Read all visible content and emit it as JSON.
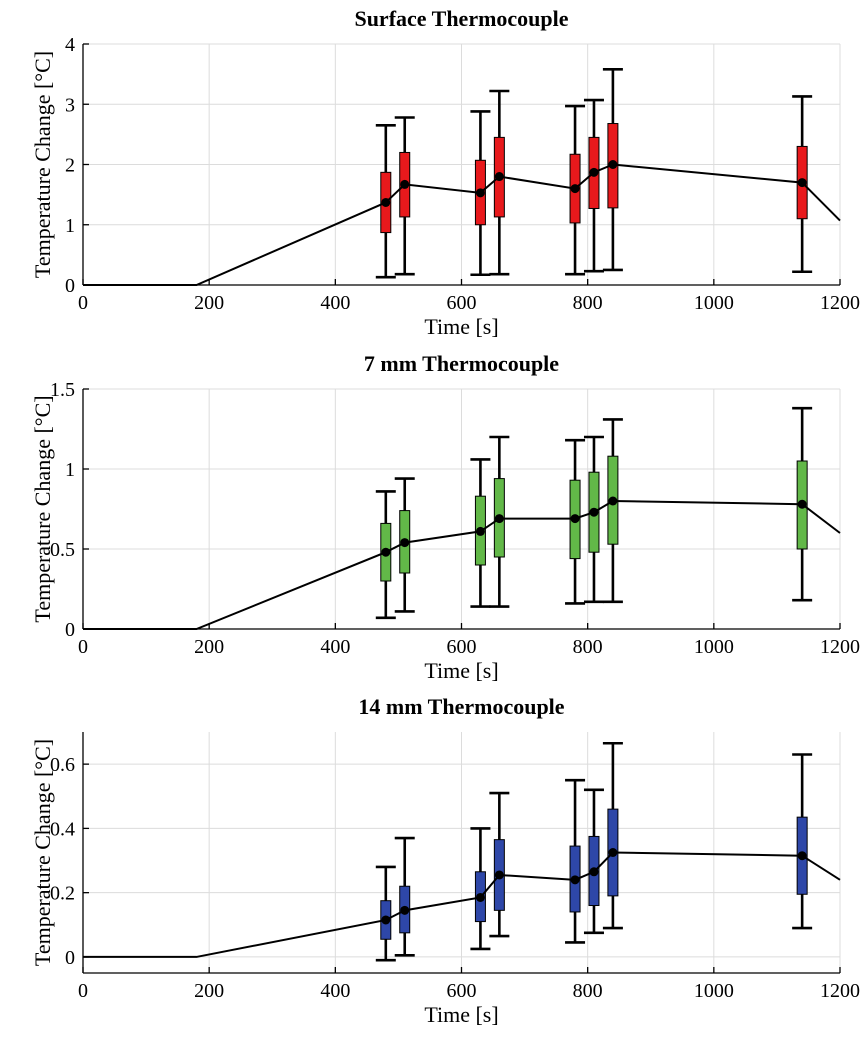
{
  "chart_data": [
    {
      "type": "box",
      "title": "Surface Thermocouple",
      "xlabel": "Time [s]",
      "ylabel": "Temperature Change [°C]",
      "xlim": [
        0,
        1200
      ],
      "ylim": [
        0,
        4
      ],
      "xticks": [
        0,
        200,
        400,
        600,
        800,
        1000,
        1200
      ],
      "yticks": [
        0,
        1,
        2,
        3,
        4
      ],
      "grid": true,
      "box_color": "#e8191c",
      "mean_line": {
        "x": [
          0,
          180,
          480,
          510,
          630,
          660,
          780,
          810,
          840,
          1140,
          1200
        ],
        "y": [
          0,
          0,
          1.37,
          1.67,
          1.53,
          1.8,
          1.6,
          1.87,
          2.0,
          1.7,
          1.07
        ]
      },
      "boxes": [
        {
          "x": 480,
          "min": 0.13,
          "q1": 0.87,
          "median": 1.37,
          "q3": 1.87,
          "max": 2.65
        },
        {
          "x": 510,
          "min": 0.18,
          "q1": 1.13,
          "median": 1.67,
          "q3": 2.2,
          "max": 2.78
        },
        {
          "x": 630,
          "min": 0.17,
          "q1": 1.0,
          "median": 1.53,
          "q3": 2.07,
          "max": 2.88
        },
        {
          "x": 660,
          "min": 0.18,
          "q1": 1.13,
          "median": 1.8,
          "q3": 2.45,
          "max": 3.22
        },
        {
          "x": 780,
          "min": 0.18,
          "q1": 1.03,
          "median": 1.6,
          "q3": 2.17,
          "max": 2.97
        },
        {
          "x": 810,
          "min": 0.23,
          "q1": 1.27,
          "median": 1.87,
          "q3": 2.45,
          "max": 3.07
        },
        {
          "x": 840,
          "min": 0.25,
          "q1": 1.28,
          "median": 2.0,
          "q3": 2.68,
          "max": 3.58
        },
        {
          "x": 1140,
          "min": 0.22,
          "q1": 1.1,
          "median": 1.7,
          "q3": 2.3,
          "max": 3.13
        }
      ]
    },
    {
      "type": "box",
      "title": "7 mm Thermocouple",
      "xlabel": "Time [s]",
      "ylabel": "Temperature Change [°C]",
      "xlim": [
        0,
        1200
      ],
      "ylim": [
        0,
        1.5
      ],
      "xticks": [
        0,
        200,
        400,
        600,
        800,
        1000,
        1200
      ],
      "yticks": [
        0,
        0.5,
        1,
        1.5
      ],
      "grid": true,
      "box_color": "#62b848",
      "mean_line": {
        "x": [
          0,
          180,
          480,
          510,
          630,
          660,
          780,
          810,
          840,
          1140,
          1200
        ],
        "y": [
          0,
          0,
          0.48,
          0.54,
          0.61,
          0.69,
          0.69,
          0.73,
          0.8,
          0.78,
          0.6
        ]
      },
      "boxes": [
        {
          "x": 480,
          "min": 0.07,
          "q1": 0.3,
          "median": 0.48,
          "q3": 0.66,
          "max": 0.86
        },
        {
          "x": 510,
          "min": 0.11,
          "q1": 0.35,
          "median": 0.54,
          "q3": 0.74,
          "max": 0.94
        },
        {
          "x": 630,
          "min": 0.14,
          "q1": 0.4,
          "median": 0.61,
          "q3": 0.83,
          "max": 1.06
        },
        {
          "x": 660,
          "min": 0.14,
          "q1": 0.45,
          "median": 0.69,
          "q3": 0.94,
          "max": 1.2
        },
        {
          "x": 780,
          "min": 0.16,
          "q1": 0.44,
          "median": 0.69,
          "q3": 0.93,
          "max": 1.18
        },
        {
          "x": 810,
          "min": 0.17,
          "q1": 0.48,
          "median": 0.73,
          "q3": 0.98,
          "max": 1.2
        },
        {
          "x": 840,
          "min": 0.17,
          "q1": 0.53,
          "median": 0.8,
          "q3": 1.08,
          "max": 1.31
        },
        {
          "x": 1140,
          "min": 0.18,
          "q1": 0.5,
          "median": 0.78,
          "q3": 1.05,
          "max": 1.38
        }
      ]
    },
    {
      "type": "box",
      "title": "14 mm Thermocouple",
      "xlabel": "Time [s]",
      "ylabel": "Temperature Change [°C]",
      "xlim": [
        0,
        1200
      ],
      "ylim": [
        -0.05,
        0.7
      ],
      "xticks": [
        0,
        200,
        400,
        600,
        800,
        1000,
        1200
      ],
      "yticks": [
        0,
        0.2,
        0.4,
        0.6
      ],
      "grid": true,
      "box_color": "#2e47a8",
      "mean_line": {
        "x": [
          0,
          180,
          480,
          510,
          630,
          660,
          780,
          810,
          840,
          1140,
          1200
        ],
        "y": [
          0,
          0,
          0.115,
          0.145,
          0.185,
          0.255,
          0.24,
          0.265,
          0.325,
          0.315,
          0.24
        ]
      },
      "boxes": [
        {
          "x": 480,
          "min": -0.01,
          "q1": 0.055,
          "median": 0.115,
          "q3": 0.175,
          "max": 0.28
        },
        {
          "x": 510,
          "min": 0.005,
          "q1": 0.075,
          "median": 0.145,
          "q3": 0.22,
          "max": 0.37
        },
        {
          "x": 630,
          "min": 0.025,
          "q1": 0.11,
          "median": 0.185,
          "q3": 0.265,
          "max": 0.4
        },
        {
          "x": 660,
          "min": 0.065,
          "q1": 0.145,
          "median": 0.255,
          "q3": 0.365,
          "max": 0.51
        },
        {
          "x": 780,
          "min": 0.045,
          "q1": 0.14,
          "median": 0.24,
          "q3": 0.345,
          "max": 0.55
        },
        {
          "x": 810,
          "min": 0.075,
          "q1": 0.16,
          "median": 0.265,
          "q3": 0.375,
          "max": 0.52
        },
        {
          "x": 840,
          "min": 0.09,
          "q1": 0.19,
          "median": 0.325,
          "q3": 0.46,
          "max": 0.665
        },
        {
          "x": 1140,
          "min": 0.09,
          "q1": 0.195,
          "median": 0.315,
          "q3": 0.435,
          "max": 0.63
        }
      ]
    }
  ]
}
